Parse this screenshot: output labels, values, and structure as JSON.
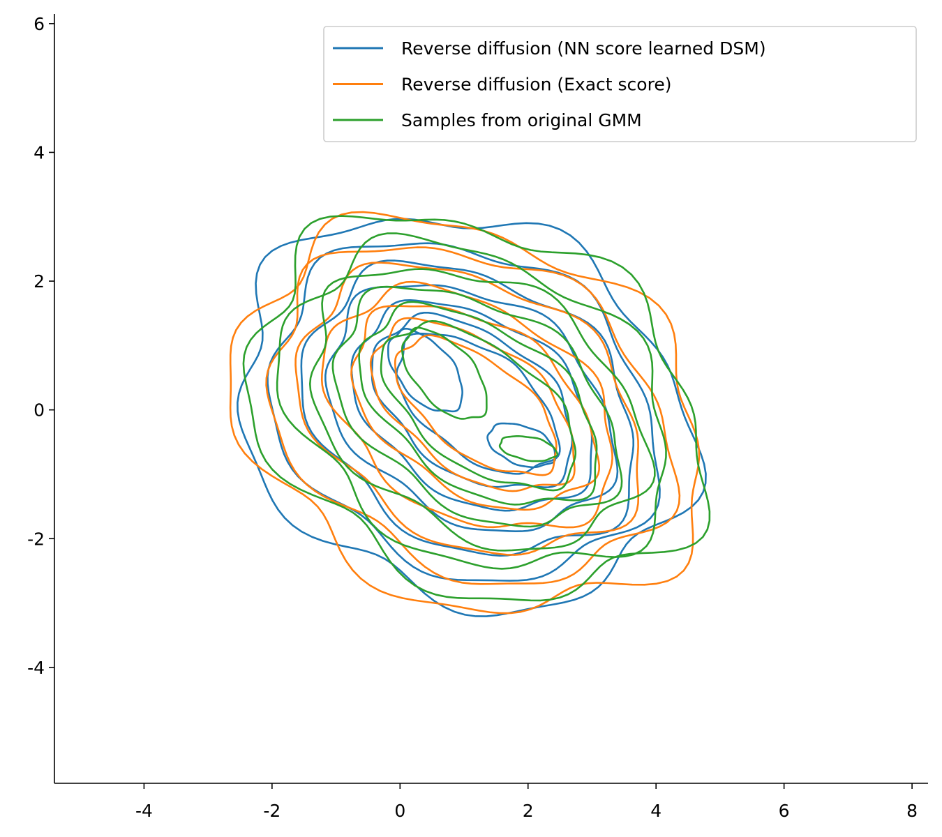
{
  "chart_data": {
    "type": "contour",
    "title": "",
    "xlabel": "",
    "ylabel": "",
    "xlim": [
      -5.4,
      8.25
    ],
    "ylim": [
      -5.8,
      6.15
    ],
    "grid": false,
    "legend_position": "top-right",
    "x_ticks": [
      -4,
      -2,
      0,
      2,
      4,
      6,
      8
    ],
    "y_ticks": [
      -4,
      -2,
      0,
      2,
      4,
      6
    ],
    "series": [
      {
        "name": "Reverse diffusion (NN score learned DSM)",
        "color": "#1f77b4",
        "levels": [
          {
            "center": [
              1.0,
              0.0
            ],
            "rx": 3.65,
            "ry": 2.9,
            "angle": -25,
            "wobble": 0.06,
            "phase": 0.3
          },
          {
            "center": [
              1.0,
              0.0
            ],
            "rx": 3.15,
            "ry": 2.45,
            "angle": -28,
            "wobble": 0.05,
            "phase": 1.1
          },
          {
            "center": [
              1.1,
              0.0
            ],
            "rx": 2.75,
            "ry": 2.05,
            "angle": -30,
            "wobble": 0.05,
            "phase": 2.0
          },
          {
            "center": [
              1.1,
              0.05
            ],
            "rx": 2.4,
            "ry": 1.7,
            "angle": -31,
            "wobble": 0.045,
            "phase": 0.7
          },
          {
            "center": [
              1.15,
              0.05
            ],
            "rx": 2.05,
            "ry": 1.38,
            "angle": -33,
            "wobble": 0.04,
            "phase": 1.6
          },
          {
            "center": [
              1.15,
              0.1
            ],
            "rx": 1.75,
            "ry": 1.08,
            "angle": -35,
            "wobble": 0.04,
            "phase": 2.4
          },
          {
            "center": [
              1.2,
              0.1
            ],
            "rx": 1.45,
            "ry": 0.8,
            "angle": -37,
            "wobble": 0.035,
            "phase": 0.2
          },
          {
            "center": [
              0.4,
              0.6
            ],
            "rx": 0.75,
            "ry": 0.42,
            "angle": -50,
            "wobble": 0.03,
            "phase": 1.2
          },
          {
            "center": [
              1.9,
              -0.55
            ],
            "rx": 0.55,
            "ry": 0.3,
            "angle": -20,
            "wobble": 0.03,
            "phase": 2.1
          }
        ]
      },
      {
        "name": "Reverse diffusion (Exact score)",
        "color": "#ff7f0e",
        "levels": [
          {
            "center": [
              1.1,
              -0.1
            ],
            "rx": 3.8,
            "ry": 2.85,
            "angle": -24,
            "wobble": 0.065,
            "phase": 2.6
          },
          {
            "center": [
              1.1,
              -0.05
            ],
            "rx": 3.3,
            "ry": 2.4,
            "angle": -27,
            "wobble": 0.055,
            "phase": 0.9
          },
          {
            "center": [
              1.1,
              0.0
            ],
            "rx": 2.85,
            "ry": 2.0,
            "angle": -29,
            "wobble": 0.05,
            "phase": 1.8
          },
          {
            "center": [
              1.1,
              0.0
            ],
            "rx": 2.45,
            "ry": 1.62,
            "angle": -31,
            "wobble": 0.045,
            "phase": 2.9
          },
          {
            "center": [
              1.15,
              0.05
            ],
            "rx": 2.1,
            "ry": 1.3,
            "angle": -33,
            "wobble": 0.04,
            "phase": 0.5
          },
          {
            "center": [
              1.15,
              0.05
            ],
            "rx": 1.8,
            "ry": 1.0,
            "angle": -35,
            "wobble": 0.04,
            "phase": 1.4
          },
          {
            "center": [
              1.2,
              0.05
            ],
            "rx": 1.48,
            "ry": 0.72,
            "angle": -37,
            "wobble": 0.035,
            "phase": 2.2
          }
        ]
      },
      {
        "name": "Samples from original GMM",
        "color": "#2ca02c",
        "levels": [
          {
            "center": [
              1.2,
              0.05
            ],
            "rx": 3.7,
            "ry": 2.75,
            "angle": -26,
            "wobble": 0.07,
            "phase": 1.5
          },
          {
            "center": [
              1.2,
              0.05
            ],
            "rx": 3.2,
            "ry": 2.3,
            "angle": -28,
            "wobble": 0.06,
            "phase": 2.7
          },
          {
            "center": [
              1.2,
              0.05
            ],
            "rx": 2.8,
            "ry": 1.92,
            "angle": -30,
            "wobble": 0.055,
            "phase": 0.1
          },
          {
            "center": [
              1.2,
              0.05
            ],
            "rx": 2.42,
            "ry": 1.55,
            "angle": -32,
            "wobble": 0.05,
            "phase": 1.0
          },
          {
            "center": [
              1.25,
              0.05
            ],
            "rx": 2.08,
            "ry": 1.22,
            "angle": -34,
            "wobble": 0.045,
            "phase": 1.9
          },
          {
            "center": [
              1.25,
              0.05
            ],
            "rx": 1.75,
            "ry": 0.92,
            "angle": -36,
            "wobble": 0.04,
            "phase": 2.8
          },
          {
            "center": [
              0.7,
              0.55
            ],
            "rx": 0.85,
            "ry": 0.45,
            "angle": -48,
            "wobble": 0.03,
            "phase": 0.6
          },
          {
            "center": [
              2.0,
              -0.6
            ],
            "rx": 0.45,
            "ry": 0.18,
            "angle": -10,
            "wobble": 0.03,
            "phase": 1.7
          }
        ]
      }
    ]
  }
}
